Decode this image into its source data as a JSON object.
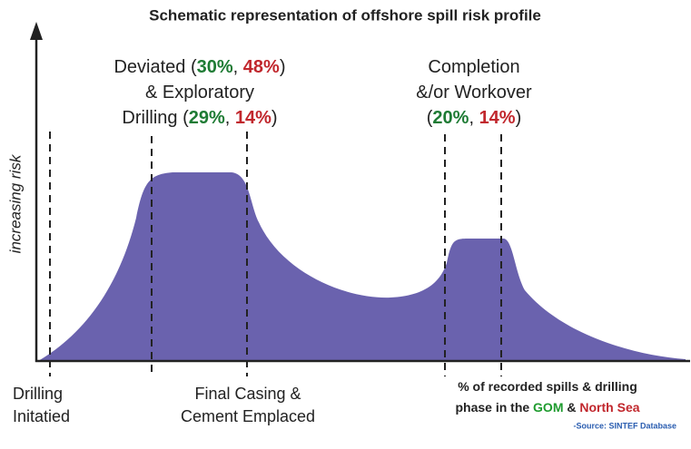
{
  "title": "Schematic representation of offshore spill risk profile",
  "y_axis_label": "increasing risk",
  "phase_labels": [
    {
      "lines": [
        [
          {
            "text": "Deviated ("
          },
          {
            "text": "30%",
            "color": "#1e7b34"
          },
          {
            "text": ", "
          },
          {
            "text": "48%",
            "color": "#c1272d"
          },
          {
            "text": ")"
          }
        ],
        [
          {
            "text": "& Exploratory"
          }
        ],
        [
          {
            "text": "Drilling ("
          },
          {
            "text": "29%",
            "color": "#1e7b34"
          },
          {
            "text": ", "
          },
          {
            "text": "14%",
            "color": "#c1272d"
          },
          {
            "text": ")"
          }
        ]
      ]
    },
    {
      "lines": [
        [
          {
            "text": "Completion"
          }
        ],
        [
          {
            "text": "&/or Workover"
          }
        ],
        [
          {
            "text": "("
          },
          {
            "text": "20%",
            "color": "#1e7b34"
          },
          {
            "text": ", "
          },
          {
            "text": "14%",
            "color": "#c1272d"
          },
          {
            "text": ")"
          }
        ]
      ]
    }
  ],
  "markers": [
    {
      "lines": [
        [
          {
            "text": "Drilling"
          }
        ],
        [
          {
            "text": "Initatied"
          }
        ]
      ]
    },
    {
      "lines": [
        [
          {
            "text": "Final Casing &"
          }
        ],
        [
          {
            "text": "Cement Emplaced"
          }
        ]
      ]
    }
  ],
  "footnote": {
    "lines": [
      [
        {
          "text": "% of recorded spills & drilling"
        }
      ],
      [
        {
          "text": "phase in the "
        },
        {
          "text": "GOM",
          "color": "#1e9b2e"
        },
        {
          "text": " & "
        },
        {
          "text": "North Sea",
          "color": "#c1272d"
        }
      ]
    ]
  },
  "source": "-Source: SINTEF Database"
}
